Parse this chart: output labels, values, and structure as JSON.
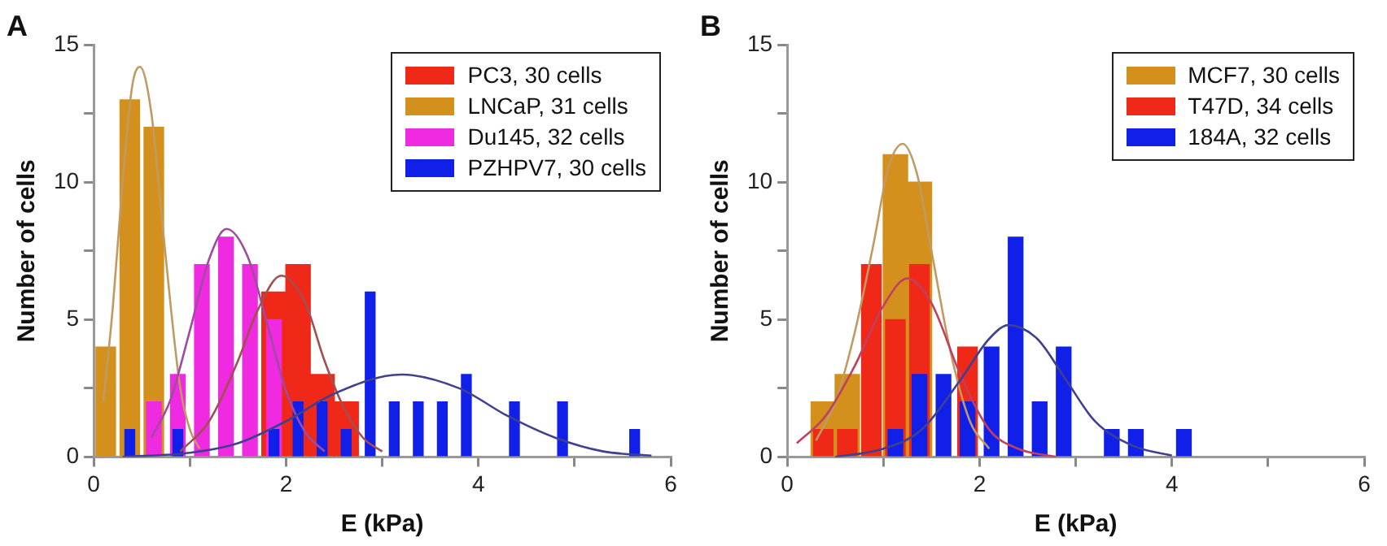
{
  "chart_data": [
    {
      "type": "bar",
      "title": "A",
      "xlabel": "E (kPa)",
      "ylabel": "Number of cells",
      "xlim": [
        0,
        6
      ],
      "ylim": [
        0,
        15
      ],
      "xticks": [
        0,
        {
          "value": 1,
          "label": null
        },
        2,
        {
          "value": 3,
          "label": null
        },
        4,
        {
          "value": 5,
          "label": null
        },
        6
      ],
      "yticks": [
        0,
        {
          "value": 2.5,
          "label": null
        },
        5,
        {
          "value": 7.5,
          "label": null
        },
        10,
        {
          "value": 12.5,
          "label": null
        },
        15
      ],
      "grid": false,
      "legend": "top right",
      "marker": "none",
      "series": [
        {
          "name": "PC3, 30 cells",
          "color": "#f02818",
          "x": [
            1.875,
            2.125,
            2.375,
            2.625
          ],
          "values": [
            6,
            7,
            3,
            2
          ]
        },
        {
          "name": "LNCaP, 31 cells",
          "color": "#d4901c",
          "x": [
            0.125,
            0.375,
            0.625
          ],
          "values": [
            4,
            13,
            12
          ]
        },
        {
          "name": "Du145, 32 cells",
          "color": "#f02ae0",
          "x": [
            0.625,
            0.875,
            1.125,
            1.375,
            1.625,
            1.875
          ],
          "values": [
            2,
            3,
            7,
            8,
            7,
            5
          ]
        },
        {
          "name": "PZHPV7, 30 cells",
          "color": "#1020e8",
          "x": [
            0.375,
            0.875,
            1.875,
            2.125,
            2.375,
            2.625,
            2.875,
            3.125,
            3.375,
            3.625,
            3.875,
            4.375,
            4.875,
            5.625
          ],
          "values": [
            1,
            1,
            1,
            2,
            2,
            1,
            6,
            2,
            2,
            2,
            3,
            2,
            2,
            1
          ]
        },
        {
          "type": "line",
          "color": "#c09a60",
          "x": [
            0.1,
            0.2,
            0.3,
            0.4,
            0.48,
            0.6,
            0.7,
            0.8,
            0.9,
            1.0,
            1.1
          ],
          "values": [
            2,
            5.5,
            10,
            13.5,
            14.2,
            12.5,
            9,
            5.5,
            2.5,
            1,
            0.3
          ]
        },
        {
          "type": "line",
          "color": "#a04aa0",
          "x": [
            0.6,
            0.8,
            1.0,
            1.2,
            1.38,
            1.6,
            1.8,
            2.0,
            2.2,
            2.4
          ],
          "values": [
            0.7,
            2.1,
            4.6,
            7.2,
            8.3,
            7.3,
            4.9,
            2.4,
            0.9,
            0.2
          ]
        },
        {
          "type": "line",
          "color": "#a05050",
          "x": [
            0.9,
            1.2,
            1.5,
            1.7,
            1.95,
            2.2,
            2.4,
            2.6,
            2.8,
            3.0
          ],
          "values": [
            0.2,
            1.3,
            3.5,
            5.3,
            6.6,
            5.6,
            3.5,
            1.8,
            0.7,
            0.2
          ]
        },
        {
          "type": "line",
          "color": "#404090",
          "x": [
            0.3,
            1.0,
            1.5,
            2.0,
            2.5,
            3.2,
            3.8,
            4.3,
            4.8,
            5.3,
            5.8
          ],
          "values": [
            0,
            0.15,
            0.5,
            1.3,
            2.3,
            3,
            2.5,
            1.5,
            0.7,
            0.2,
            0.05
          ]
        }
      ]
    },
    {
      "type": "bar",
      "title": "B",
      "xlabel": "E (kPa)",
      "ylabel": "Number of cells",
      "xlim": [
        0,
        6
      ],
      "ylim": [
        0,
        15
      ],
      "xticks": [
        0,
        {
          "value": 1,
          "label": null
        },
        2,
        {
          "value": 3,
          "label": null
        },
        4,
        {
          "value": 5,
          "label": null
        },
        6
      ],
      "yticks": [
        0,
        {
          "value": 2.5,
          "label": null
        },
        5,
        {
          "value": 7.5,
          "label": null
        },
        10,
        {
          "value": 12.5,
          "label": null
        },
        15
      ],
      "grid": false,
      "legend": "top right",
      "marker": "none",
      "series": [
        {
          "name": "MCF7, 30 cells",
          "color": "#d4901c",
          "x": [
            0.375,
            0.625,
            1.125,
            1.375
          ],
          "values": [
            2,
            3,
            11,
            10
          ]
        },
        {
          "name": "T47D, 34 cells",
          "color": "#f02818",
          "x": [
            0.375,
            0.625,
            0.875,
            1.125,
            1.375,
            1.875
          ],
          "values": [
            1,
            1,
            7,
            5,
            7,
            4
          ]
        },
        {
          "name": "184A, 32 cells",
          "color": "#1020e8",
          "x": [
            1.125,
            1.375,
            1.625,
            1.875,
            2.125,
            2.375,
            2.625,
            2.875,
            3.375,
            3.625,
            4.125
          ],
          "values": [
            1,
            3,
            3,
            2,
            4,
            8,
            2,
            4,
            1,
            1,
            1
          ]
        },
        {
          "type": "line",
          "color": "#c09a60",
          "x": [
            0.3,
            0.5,
            0.7,
            0.9,
            1.05,
            1.2,
            1.35,
            1.5,
            1.7,
            1.9,
            2.1
          ],
          "values": [
            0.6,
            2,
            4.5,
            7.8,
            10.5,
            11.4,
            10.3,
            7.5,
            3.8,
            1.3,
            0.3
          ]
        },
        {
          "type": "line",
          "color": "#c04060",
          "x": [
            0.1,
            0.4,
            0.7,
            1.0,
            1.25,
            1.5,
            1.8,
            2.1,
            2.4,
            2.8
          ],
          "values": [
            0.5,
            1.5,
            3.3,
            5.5,
            6.5,
            5.6,
            3,
            1,
            0.3,
            0
          ]
        },
        {
          "type": "line",
          "color": "#404090",
          "x": [
            0.5,
            1.0,
            1.4,
            1.8,
            2.1,
            2.3,
            2.6,
            2.9,
            3.2,
            3.6,
            4.0
          ],
          "values": [
            0,
            0.3,
            1,
            2.8,
            4.3,
            4.8,
            4.3,
            2.8,
            1.3,
            0.4,
            0.05
          ]
        }
      ]
    }
  ]
}
